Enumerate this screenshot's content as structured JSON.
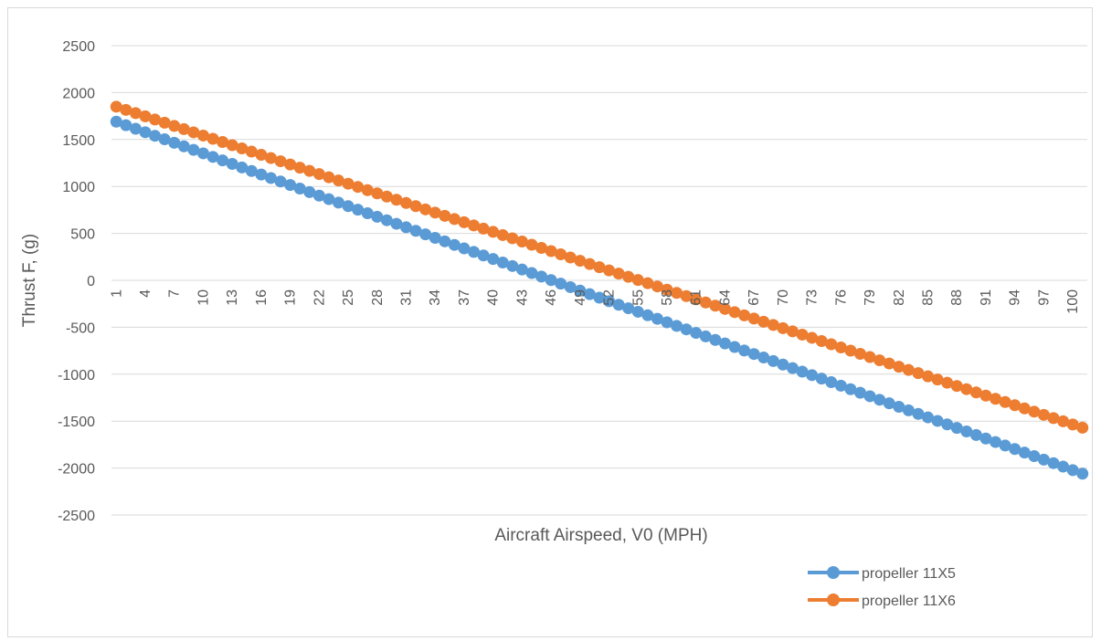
{
  "chart_data": {
    "type": "line",
    "xlabel": "Aircraft Airspeed, V0 (MPH)",
    "ylabel": "Thrust  F, (g)",
    "ylim": [
      -2500,
      2500
    ],
    "y_ticks": [
      "2500",
      "2000",
      "1500",
      "1000",
      "500",
      "0",
      "-500",
      "-1000",
      "-1500",
      "-2000",
      "-2500"
    ],
    "x_range": [
      1,
      101
    ],
    "x_tick_labels": [
      "1",
      "4",
      "7",
      "10",
      "13",
      "16",
      "19",
      "22",
      "25",
      "28",
      "31",
      "34",
      "37",
      "40",
      "43",
      "46",
      "49",
      "52",
      "55",
      "58",
      "61",
      "64",
      "67",
      "70",
      "73",
      "76",
      "79",
      "82",
      "85",
      "88",
      "91",
      "94",
      "97",
      "100"
    ],
    "grid": "horizontal",
    "legend_position": "bottom-right",
    "series": [
      {
        "name": "propeller 11X5",
        "color": "#5B9BD5",
        "x_start": 1,
        "x_end": 101,
        "y_start": 1690,
        "y_end": -2060
      },
      {
        "name": "propeller 11X6",
        "color": "#ED7D31",
        "x_start": 1,
        "x_end": 101,
        "y_start": 1850,
        "y_end": -1570
      }
    ]
  }
}
